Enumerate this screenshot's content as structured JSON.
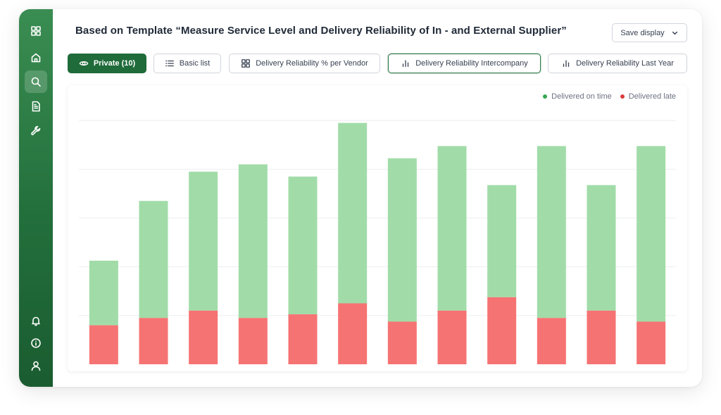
{
  "header": {
    "title": "Based on Template “Measure Service Level and Delivery Reliability of In - and External Supplier”",
    "save_display_label": "Save display"
  },
  "sidebar": {
    "top_items": [
      {
        "icon": "grid-icon"
      },
      {
        "icon": "home-icon"
      },
      {
        "icon": "search-icon",
        "active": true
      },
      {
        "icon": "document-icon"
      },
      {
        "icon": "wrench-icon"
      }
    ],
    "bottom_items": [
      {
        "icon": "bell-icon"
      },
      {
        "icon": "info-icon"
      },
      {
        "icon": "user-icon"
      }
    ]
  },
  "tabs": [
    {
      "label": "Private (10)",
      "icon": "eye-icon",
      "style": "private"
    },
    {
      "label": "Basic list",
      "icon": "list-icon"
    },
    {
      "label": "Delivery Reliability % per Vendor",
      "icon": "grid-icon"
    },
    {
      "label": "Delivery Reliability Intercompany",
      "icon": "bar-chart-icon",
      "selected": true
    },
    {
      "label": "Delivery Reliability Last Year",
      "icon": "bar-chart-icon"
    }
  ],
  "colors": {
    "on_time": "#a1dca8",
    "late": "#f67373",
    "on_time_dot": "#34a853",
    "late_dot": "#d93d3d",
    "sidebar": "#236f3c",
    "accent": "#1f6b3a"
  },
  "chart_data": {
    "type": "bar",
    "stacked": true,
    "categories": [
      "",
      "",
      "",
      "",
      "",
      "",
      "",
      "",
      "",
      "",
      "",
      ""
    ],
    "series": [
      {
        "name": "Delivered late",
        "values": [
          16,
          19,
          22,
          19,
          20.5,
          25,
          17.5,
          22,
          27.5,
          19,
          22,
          17.5
        ]
      },
      {
        "name": "Delivered on time",
        "values": [
          26.5,
          48,
          57,
          63,
          56.5,
          74,
          67,
          67.5,
          46,
          70.5,
          51.5,
          72
        ]
      }
    ],
    "ylim": [
      0,
      100
    ],
    "gridlines": [
      20,
      40,
      60,
      80,
      100
    ],
    "legend_position": "top-right",
    "xlabel": "",
    "ylabel": ""
  }
}
